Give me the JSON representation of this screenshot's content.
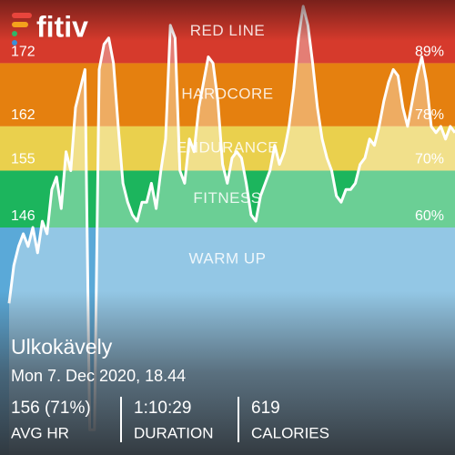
{
  "logo": "fitiv",
  "chart_data": {
    "type": "line",
    "ylim": [
      110,
      182
    ],
    "yticks": [
      172,
      162,
      155,
      146
    ],
    "zone_percent_ticks": [
      {
        "value": 172,
        "label": "89%"
      },
      {
        "value": 162,
        "label": "78%"
      },
      {
        "value": 155,
        "label": "70%"
      },
      {
        "value": 146,
        "label": "60%"
      }
    ],
    "zones": [
      {
        "name": "RED LINE",
        "color": "#d63a2c"
      },
      {
        "name": "HARDCORE",
        "color": "#e5800f"
      },
      {
        "name": "ENDURANCE",
        "color": "#ead04d"
      },
      {
        "name": "FITNESS",
        "color": "#1cb55d"
      },
      {
        "name": "WARM UP",
        "color": "#5aa9d8"
      }
    ],
    "series": [
      {
        "color": "#ffffff",
        "values": [
          134,
          140,
          143,
          145,
          143,
          146,
          142,
          147,
          145,
          152,
          154,
          149,
          158,
          155,
          165,
          168,
          171,
          114,
          114,
          171,
          175,
          176,
          172,
          162,
          153,
          150,
          148,
          147,
          150,
          150,
          153,
          149,
          155,
          160,
          178,
          176,
          155,
          153,
          160,
          158,
          165,
          169,
          173,
          172,
          166,
          156,
          153,
          157,
          158,
          157,
          153,
          148,
          147,
          151,
          153,
          155,
          159,
          156,
          158,
          162,
          168,
          176,
          181,
          178,
          172,
          165,
          160,
          157,
          155,
          151,
          150,
          152,
          152,
          153,
          156,
          157,
          160,
          159,
          162,
          166,
          169,
          171,
          170,
          165,
          162,
          166,
          170,
          173,
          169,
          162,
          161,
          162,
          160,
          162,
          161
        ]
      }
    ]
  },
  "workout": {
    "title": "Ulkokävely",
    "date": "Mon 7. Dec 2020, 18.44",
    "stats": [
      {
        "value": "156 (71%)",
        "label": "AVG HR"
      },
      {
        "value": "1:10:29",
        "label": "DURATION"
      },
      {
        "value": "619",
        "label": "CALORIES"
      }
    ]
  }
}
